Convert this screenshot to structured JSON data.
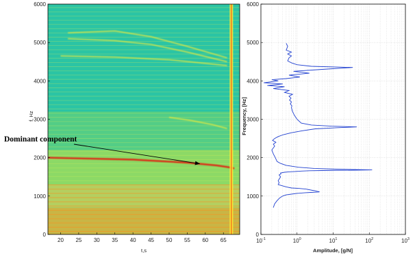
{
  "colors": {
    "spectrogram_background": "#2bc4a4",
    "spectrogram_high": "#ffee33",
    "spectrogram_peak": "#e02010",
    "curve": "#1f3fd0",
    "grid": "#c8c8c8",
    "axis": "#000000"
  },
  "chart_data": [
    {
      "type": "heatmap",
      "title": "",
      "xlabel": "t,s",
      "ylabel": "f, Hz",
      "xlim": [
        16.5,
        69.5
      ],
      "ylim": [
        0,
        6000
      ],
      "xticks": [
        20,
        25,
        30,
        35,
        40,
        45,
        50,
        55,
        60,
        65
      ],
      "yticks": [
        0,
        1000,
        2000,
        3000,
        4000,
        5000,
        6000
      ],
      "grid": false,
      "annotations": [
        {
          "text": "Dominant component",
          "arrow_to": {
            "t": 58.5,
            "f": 1840
          }
        }
      ],
      "features": [
        {
          "kind": "harmonic-track",
          "t": [
            16.5,
            40,
            55,
            63,
            66.5,
            68
          ],
          "f": [
            2000,
            1950,
            1870,
            1800,
            1750,
            1720
          ],
          "strength": "dominant"
        },
        {
          "kind": "harmonic-track",
          "t": [
            16.5,
            69
          ],
          "f": [
            1000,
            1000
          ],
          "strength": "strong"
        },
        {
          "kind": "harmonic-track",
          "t": [
            16.5,
            69
          ],
          "f": [
            1180,
            1180
          ],
          "strength": "medium"
        },
        {
          "kind": "harmonic-track",
          "t": [
            16.5,
            69
          ],
          "f": [
            500,
            500
          ],
          "strength": "strong"
        },
        {
          "kind": "harmonic-track",
          "t": [
            16.5,
            69
          ],
          "f": [
            300,
            300
          ],
          "strength": "strong"
        },
        {
          "kind": "curved-track",
          "t": [
            22,
            35,
            45,
            55,
            66
          ],
          "f": [
            5250,
            5300,
            5150,
            4900,
            4600
          ],
          "strength": "weak"
        },
        {
          "kind": "curved-track",
          "t": [
            22,
            35,
            45,
            55,
            66
          ],
          "f": [
            5100,
            5050,
            4950,
            4750,
            4500
          ],
          "strength": "weak"
        },
        {
          "kind": "curved-track",
          "t": [
            20,
            35,
            50,
            66
          ],
          "f": [
            4650,
            4620,
            4550,
            4400
          ],
          "strength": "weak"
        },
        {
          "kind": "curved-track",
          "t": [
            50,
            56,
            62,
            66
          ],
          "f": [
            3050,
            2970,
            2860,
            2760
          ],
          "strength": "weak"
        },
        {
          "kind": "vertical-line",
          "t": 67.2,
          "f": [
            0,
            6000
          ],
          "strength": "strong"
        }
      ]
    },
    {
      "type": "line",
      "title": "",
      "xlabel": "Amplitude, [g/N]",
      "ylabel": "Frequency, [Hz]",
      "xscale": "log",
      "xlim": [
        0.1,
        1000
      ],
      "ylim": [
        0,
        6000
      ],
      "xticks": [
        "10^-1",
        "10^0",
        "10^1",
        "10^2",
        "10^3"
      ],
      "yticks": [
        0,
        1000,
        2000,
        3000,
        4000,
        5000,
        6000
      ],
      "grid": true,
      "series": [
        {
          "x": [
            0.22,
            0.24,
            0.28,
            0.33,
            0.4,
            0.5,
            0.7,
            1.0,
            1.6,
            2.4,
            3.3,
            4.2,
            3.0,
            1.8,
            1.1,
            0.7,
            0.5,
            0.35,
            0.3,
            0.32,
            0.3,
            0.35,
            0.32,
            0.36,
            0.35,
            0.45,
            0.6,
            0.9,
            1.3,
            2.2,
            5.0,
            20,
            120,
            12,
            3,
            1.1,
            0.5,
            0.35,
            0.28,
            0.25,
            0.22,
            0.2,
            0.24,
            0.22,
            0.26,
            0.21,
            0.24,
            0.3,
            0.42,
            0.7,
            1.4,
            3.2,
            12,
            45,
            9,
            2.5,
            1.3,
            1.0,
            0.85,
            0.75,
            0.7,
            0.72,
            0.65,
            0.7,
            0.62,
            0.68,
            0.6,
            0.75,
            0.45,
            0.6,
            0.22,
            0.45,
            0.15,
            0.4,
            0.12,
            0.3,
            0.2,
            0.5,
            1.2,
            0.6,
            2.2,
            0.8,
            5.0,
            35,
            2.5,
            1.0,
            0.7,
            0.55,
            0.6,
            0.7,
            0.55,
            0.7,
            0.5,
            0.55,
            0.5
          ],
          "y": [
            700,
            800,
            880,
            950,
            1000,
            1030,
            1050,
            1070,
            1085,
            1095,
            1100,
            1110,
            1140,
            1180,
            1200,
            1210,
            1240,
            1280,
            1300,
            1350,
            1400,
            1500,
            1550,
            1580,
            1600,
            1620,
            1630,
            1640,
            1650,
            1660,
            1665,
            1670,
            1680,
            1700,
            1720,
            1750,
            1800,
            1850,
            1900,
            2000,
            2100,
            2200,
            2300,
            2350,
            2400,
            2450,
            2500,
            2550,
            2600,
            2650,
            2700,
            2750,
            2780,
            2800,
            2820,
            2850,
            2900,
            3000,
            3100,
            3200,
            3300,
            3350,
            3400,
            3450,
            3500,
            3550,
            3600,
            3650,
            3700,
            3750,
            3800,
            3850,
            3880,
            3920,
            3950,
            4000,
            4030,
            4060,
            4100,
            4150,
            4200,
            4250,
            4300,
            4350,
            4380,
            4420,
            4470,
            4520,
            4600,
            4650,
            4700,
            4750,
            4800,
            4900,
            4980
          ]
        }
      ]
    }
  ]
}
